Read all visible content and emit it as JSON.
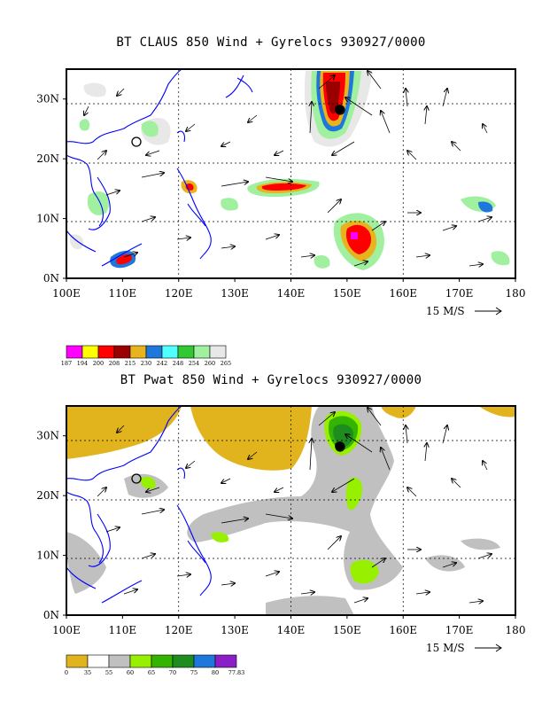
{
  "panels": [
    {
      "title": "BT CLAUS 850 Wind + Gyrelocs 930927/0000",
      "x_ticks": [
        "100E",
        "110E",
        "120E",
        "130E",
        "140E",
        "150E",
        "160E",
        "170E",
        "180"
      ],
      "y_ticks": [
        "0N",
        "10N",
        "20N",
        "30N"
      ],
      "scale_label": "15 M/S",
      "legend": {
        "values": [
          "187",
          "194",
          "200",
          "208",
          "215",
          "230",
          "242",
          "248",
          "254",
          "260",
          "265"
        ],
        "colors": [
          "#ff00ff",
          "#ffff00",
          "#ff0000",
          "#9b0000",
          "#e8b41e",
          "#1e78dc",
          "#50ffff",
          "#32c832",
          "#a0f0a0",
          "#e8e8e8"
        ]
      }
    },
    {
      "title": "BT Pwat 850 Wind + Gyrelocs 930927/0000",
      "x_ticks": [
        "100E",
        "110E",
        "120E",
        "130E",
        "140E",
        "150E",
        "160E",
        "170E",
        "180"
      ],
      "y_ticks": [
        "0N",
        "10N",
        "20N",
        "30N"
      ],
      "scale_label": "15 M/S",
      "legend": {
        "values": [
          "0",
          "35",
          "55",
          "60",
          "65",
          "70",
          "75",
          "80",
          "77.83"
        ],
        "colors": [
          "#e1b41e",
          "#ffffff",
          "#c0c0c0",
          "#96f000",
          "#32b400",
          "#1e8c1e",
          "#1e78dc",
          "#8c1ec8"
        ]
      }
    }
  ]
}
